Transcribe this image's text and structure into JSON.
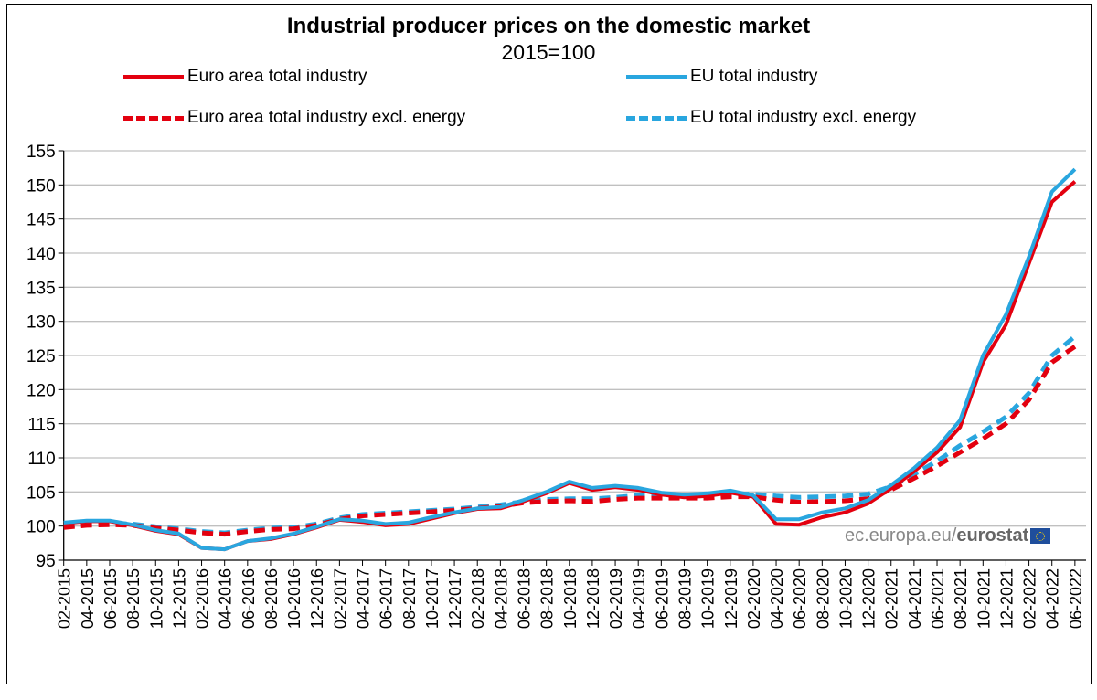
{
  "chart_data": {
    "type": "line",
    "title": "Industrial producer prices on the domestic market",
    "subtitle": "2015=100",
    "x": [
      "02-2015",
      "04-2015",
      "06-2015",
      "08-2015",
      "10-2015",
      "12-2015",
      "02-2016",
      "04-2016",
      "06-2016",
      "08-2016",
      "10-2016",
      "12-2016",
      "02-2017",
      "04-2017",
      "06-2017",
      "08-2017",
      "10-2017",
      "12-2017",
      "02-2018",
      "04-2018",
      "06-2018",
      "08-2018",
      "10-2018",
      "12-2018",
      "02-2019",
      "04-2019",
      "06-2019",
      "08-2019",
      "10-2019",
      "12-2019",
      "02-2020",
      "04-2020",
      "06-2020",
      "08-2020",
      "10-2020",
      "12-2020",
      "02-2021",
      "04-2021",
      "06-2021",
      "08-2021",
      "10-2021",
      "12-2021",
      "02-2022",
      "04-2022",
      "06-2022"
    ],
    "ylim": [
      95,
      155
    ],
    "yticks": [
      95,
      100,
      105,
      110,
      115,
      120,
      125,
      130,
      135,
      140,
      145,
      150,
      155
    ],
    "grid": true,
    "legend_position": "top",
    "series": [
      {
        "name": "Euro area total industry",
        "color": "#e3000f",
        "dash": false,
        "values": [
          100.4,
          100.7,
          100.7,
          100.1,
          99.3,
          98.8,
          96.8,
          96.6,
          97.8,
          98.1,
          98.8,
          99.8,
          100.9,
          100.6,
          100.1,
          100.3,
          101.1,
          101.9,
          102.5,
          102.6,
          103.6,
          104.8,
          106.3,
          105.3,
          105.7,
          105.3,
          104.6,
          104.2,
          104.4,
          104.9,
          104.3,
          100.3,
          100.2,
          101.3,
          102.0,
          103.3,
          105.5,
          108.0,
          110.8,
          114.5,
          124.0,
          129.5,
          138.5,
          147.5,
          150.5
        ]
      },
      {
        "name": "EU total industry",
        "color": "#29a6df",
        "dash": false,
        "values": [
          100.5,
          100.8,
          100.8,
          100.2,
          99.4,
          98.9,
          96.8,
          96.6,
          97.8,
          98.2,
          98.9,
          99.9,
          101.0,
          100.8,
          100.3,
          100.5,
          101.3,
          102.0,
          102.6,
          102.8,
          103.8,
          105.0,
          106.5,
          105.6,
          105.9,
          105.6,
          104.9,
          104.6,
          104.8,
          105.2,
          104.5,
          101.0,
          101.0,
          102.0,
          102.6,
          103.8,
          106.0,
          108.5,
          111.5,
          115.5,
          125.0,
          131.0,
          139.5,
          149.0,
          152.3
        ]
      },
      {
        "name": "Euro area total industry excl. energy",
        "color": "#e3000f",
        "dash": true,
        "values": [
          99.8,
          100.1,
          100.2,
          100.1,
          99.7,
          99.4,
          99.0,
          98.8,
          99.2,
          99.5,
          99.6,
          100.1,
          101.0,
          101.5,
          101.7,
          101.9,
          102.1,
          102.3,
          102.6,
          102.9,
          103.4,
          103.6,
          103.7,
          103.6,
          103.9,
          104.1,
          104.1,
          104.1,
          104.1,
          104.3,
          104.3,
          103.8,
          103.5,
          103.6,
          103.7,
          104.0,
          105.3,
          107.0,
          108.8,
          110.8,
          112.8,
          115.0,
          118.5,
          124.0,
          126.3
        ]
      },
      {
        "name": "EU total industry excl. energy",
        "color": "#29a6df",
        "dash": true,
        "values": [
          100.0,
          100.3,
          100.4,
          100.3,
          99.9,
          99.6,
          99.2,
          99.0,
          99.4,
          99.7,
          99.8,
          100.3,
          101.2,
          101.7,
          101.9,
          102.1,
          102.3,
          102.5,
          102.8,
          103.1,
          103.6,
          103.9,
          104.0,
          104.0,
          104.2,
          104.5,
          104.5,
          104.5,
          104.6,
          104.7,
          104.7,
          104.4,
          104.2,
          104.3,
          104.4,
          104.7,
          105.8,
          107.6,
          109.5,
          111.8,
          113.8,
          116.0,
          119.5,
          125.0,
          127.8
        ]
      }
    ]
  },
  "watermark": {
    "prefix": "ec.europa.eu/",
    "brand": "eurostat"
  }
}
